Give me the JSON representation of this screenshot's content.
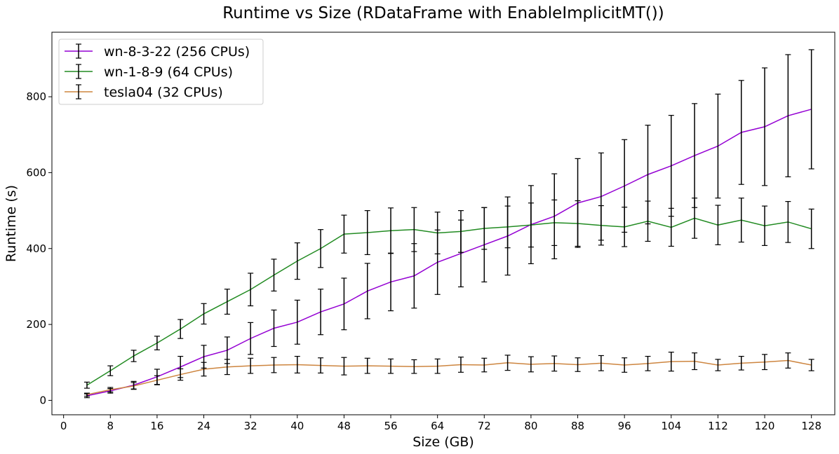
{
  "chart_data": {
    "type": "line",
    "title": "Runtime vs Size (RDataFrame with EnableImplicitMT())",
    "xlabel": "Size (GB)",
    "ylabel": "Runtime (s)",
    "xlim": [
      -2,
      132
    ],
    "ylim": [
      -38,
      970
    ],
    "xticks": [
      0,
      8,
      16,
      24,
      32,
      40,
      48,
      56,
      64,
      72,
      80,
      88,
      96,
      104,
      112,
      120,
      128
    ],
    "yticks": [
      0,
      200,
      400,
      600,
      800
    ],
    "grid": false,
    "legend_position": "top-left",
    "error_bar_color": "#000000",
    "x": [
      4,
      8,
      12,
      16,
      20,
      24,
      28,
      32,
      36,
      40,
      44,
      48,
      52,
      56,
      60,
      64,
      68,
      72,
      76,
      80,
      84,
      88,
      92,
      96,
      100,
      104,
      108,
      112,
      116,
      120,
      124,
      128
    ],
    "series": [
      {
        "name": "wn-8-3-22 (256 CPUs)",
        "color": "#9400d3",
        "values": [
          12,
          25,
          40,
          62,
          88,
          115,
          132,
          163,
          190,
          206,
          233,
          254,
          288,
          312,
          328,
          364,
          387,
          410,
          433,
          463,
          485,
          520,
          537,
          565,
          595,
          618,
          645,
          670,
          706,
          721,
          750,
          767
        ],
        "errors": [
          5,
          6,
          10,
          20,
          28,
          30,
          35,
          42,
          48,
          58,
          60,
          68,
          73,
          76,
          85,
          85,
          88,
          98,
          103,
          103,
          112,
          117,
          115,
          122,
          130,
          133,
          137,
          137,
          137,
          155,
          161,
          157
        ]
      },
      {
        "name": "wn-1-8-9 (64 CPUs)",
        "color": "#228b22",
        "values": [
          40,
          78,
          117,
          151,
          188,
          228,
          260,
          292,
          330,
          367,
          400,
          438,
          442,
          447,
          450,
          441,
          445,
          453,
          457,
          462,
          468,
          466,
          461,
          457,
          472,
          456,
          480,
          462,
          475,
          460,
          470,
          452
        ],
        "errors": [
          8,
          13,
          15,
          18,
          25,
          27,
          33,
          43,
          42,
          48,
          50,
          50,
          58,
          60,
          58,
          55,
          55,
          55,
          55,
          58,
          60,
          60,
          52,
          52,
          53,
          50,
          53,
          52,
          58,
          52,
          54,
          52
        ]
      },
      {
        "name": "tesla04 (32 CPUs)",
        "color": "#cd853f",
        "values": [
          15,
          28,
          38,
          53,
          68,
          82,
          88,
          91,
          93,
          94,
          92,
          90,
          91,
          90,
          89,
          90,
          94,
          93,
          99,
          95,
          97,
          94,
          98,
          93,
          97,
          102,
          103,
          93,
          98,
          101,
          105,
          93
        ],
        "errors": [
          4,
          6,
          9,
          12,
          15,
          18,
          20,
          20,
          20,
          22,
          20,
          23,
          20,
          19,
          18,
          19,
          20,
          18,
          20,
          20,
          20,
          18,
          20,
          19,
          19,
          25,
          22,
          15,
          18,
          20,
          20,
          15
        ]
      }
    ]
  }
}
